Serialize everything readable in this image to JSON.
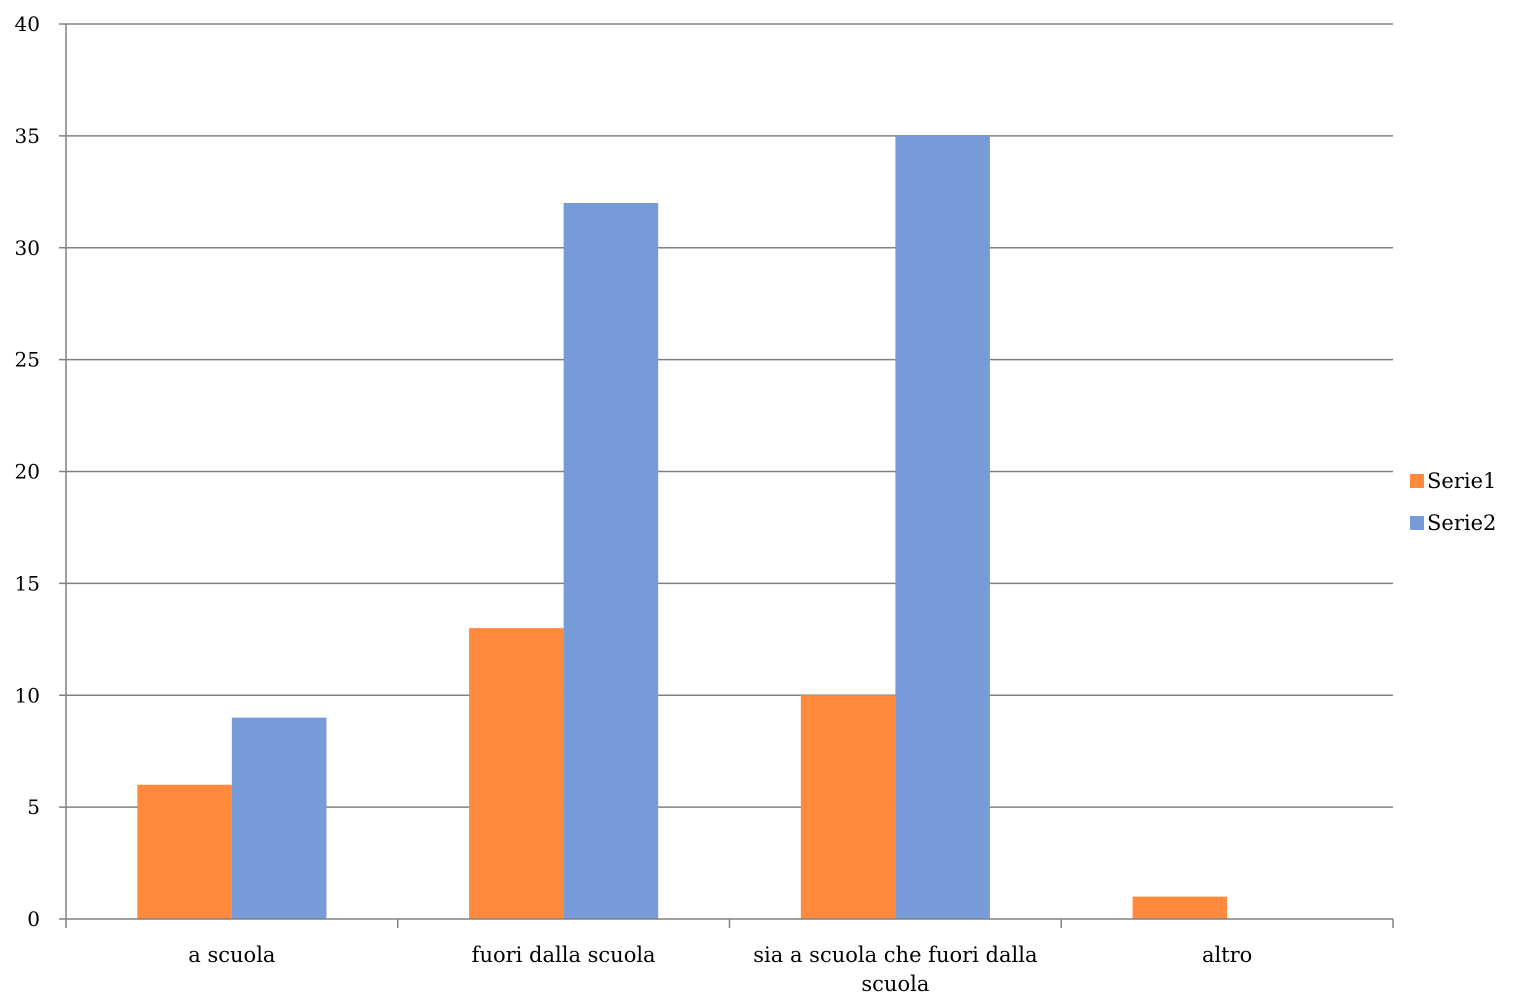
{
  "chart_data": {
    "type": "bar",
    "categories": [
      "a scuola",
      "fuori dalla scuola",
      "sia a scuola che fuori dalla scuola",
      "altro"
    ],
    "category_label_lines": [
      [
        "a scuola"
      ],
      [
        "fuori dalla scuola"
      ],
      [
        "sia a scuola che fuori dalla",
        "scuola"
      ],
      [
        "altro"
      ]
    ],
    "series": [
      {
        "name": "Serie1",
        "values": [
          6,
          13,
          10,
          1
        ],
        "color": "#FF8A3D"
      },
      {
        "name": "Serie2",
        "values": [
          9,
          32,
          35,
          0
        ],
        "color": "#779AD8"
      }
    ],
    "y_ticks": [
      0,
      5,
      10,
      15,
      20,
      25,
      30,
      35,
      40
    ],
    "ylim": [
      0,
      40
    ],
    "grid": true,
    "legend_position": "right",
    "title": "",
    "xlabel": "",
    "ylabel": "",
    "gridline_color": "#808080",
    "axis_color": "#808080"
  }
}
